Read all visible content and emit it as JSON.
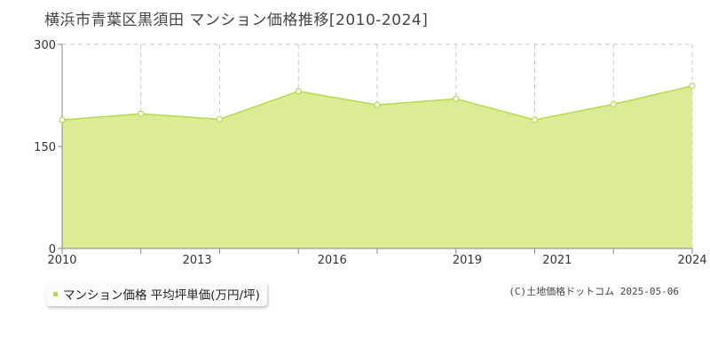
{
  "chart_data": {
    "type": "area",
    "title": "横浜市青葉区黒須田 マンション価格推移[2010-2024]",
    "x": [
      2010,
      2011,
      2012,
      2013,
      2014,
      2015,
      2016,
      2017,
      2018,
      2019,
      2020,
      2021,
      2022,
      2023,
      2024
    ],
    "xlim": [
      2010,
      2024
    ],
    "x_tick_labels": [
      "2010",
      "2013",
      "2016",
      "2019",
      "2021",
      "2024"
    ],
    "x_ticks": [
      2010,
      2013,
      2016,
      2019,
      2021,
      2024
    ],
    "x_minor_ticks": [
      2010,
      2011.75,
      2013.5,
      2015.25,
      2017,
      2018.75,
      2020.5,
      2022.25,
      2024
    ],
    "series": [
      {
        "name": "マンション価格 平均坪単価(万円/坪)",
        "points": [
          {
            "x": 2010,
            "y": 189
          },
          {
            "x": 2011.75,
            "y": 198
          },
          {
            "x": 2013.5,
            "y": 190
          },
          {
            "x": 2015.25,
            "y": 231
          },
          {
            "x": 2017,
            "y": 211
          },
          {
            "x": 2018.75,
            "y": 220
          },
          {
            "x": 2020.5,
            "y": 189
          },
          {
            "x": 2022.25,
            "y": 212
          },
          {
            "x": 2024,
            "y": 239
          }
        ]
      }
    ],
    "y_ticks": [
      0,
      150,
      300
    ],
    "ylim": [
      0,
      300
    ],
    "grid": true,
    "legend_position": "bottom-left",
    "colors": {
      "fill": "#dcec94",
      "line": "#b6d84f",
      "grid": "#c8c8c8",
      "axis": "#888888"
    }
  },
  "legend_label": "マンション価格 平均坪単価(万円/坪)",
  "copyright": "(C)土地価格ドットコム 2025-05-06"
}
